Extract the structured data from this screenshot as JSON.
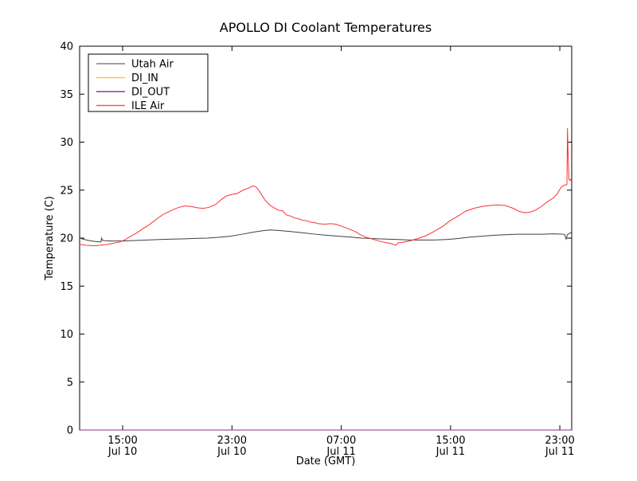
{
  "figure": {
    "background": "#ffffff",
    "axis_color": "#000000"
  },
  "chart_data": {
    "type": "line",
    "title": "APOLLO DI Coolant Temperatures",
    "xlabel": "Date (GMT)",
    "ylabel": "Temperature (C)",
    "x_unit": "hours since Jul 10 00:00 GMT",
    "xlim": [
      11.85,
      47.87
    ],
    "ylim": [
      0,
      40
    ],
    "grid": false,
    "legend_position": "upper left",
    "xticks": [
      {
        "value": 15,
        "time": "15:00",
        "date": "Jul 10"
      },
      {
        "value": 23,
        "time": "23:00",
        "date": "Jul 10"
      },
      {
        "value": 31,
        "time": "07:00",
        "date": "Jul 11"
      },
      {
        "value": 39,
        "time": "15:00",
        "date": "Jul 11"
      },
      {
        "value": 47,
        "time": "23:00",
        "date": "Jul 11"
      }
    ],
    "yticks": [
      0,
      5,
      10,
      15,
      20,
      25,
      30,
      35,
      40
    ],
    "series": [
      {
        "name": "Utah Air",
        "color": "#3f3f3f",
        "legend_color": "#808080",
        "points": [
          [
            11.85,
            20.0
          ],
          [
            12.1,
            19.9
          ],
          [
            12.5,
            19.75
          ],
          [
            13.0,
            19.65
          ],
          [
            13.35,
            19.6
          ],
          [
            13.42,
            19.62
          ],
          [
            13.45,
            20.0
          ],
          [
            13.52,
            19.78
          ],
          [
            13.7,
            19.73
          ],
          [
            14.2,
            19.7
          ],
          [
            15.0,
            19.7
          ],
          [
            15.9,
            19.75
          ],
          [
            16.8,
            19.8
          ],
          [
            17.7,
            19.85
          ],
          [
            18.6,
            19.9
          ],
          [
            19.4,
            19.92
          ],
          [
            20.3,
            19.97
          ],
          [
            21.2,
            20.0
          ],
          [
            22.0,
            20.08
          ],
          [
            22.9,
            20.2
          ],
          [
            23.8,
            20.42
          ],
          [
            24.7,
            20.65
          ],
          [
            25.3,
            20.78
          ],
          [
            25.8,
            20.85
          ],
          [
            26.4,
            20.8
          ],
          [
            27.3,
            20.68
          ],
          [
            28.2,
            20.55
          ],
          [
            29.0,
            20.42
          ],
          [
            29.9,
            20.3
          ],
          [
            30.8,
            20.2
          ],
          [
            31.7,
            20.1
          ],
          [
            32.5,
            20.0
          ],
          [
            33.4,
            19.95
          ],
          [
            34.3,
            19.9
          ],
          [
            35.2,
            19.85
          ],
          [
            36.0,
            19.8
          ],
          [
            36.9,
            19.8
          ],
          [
            37.8,
            19.8
          ],
          [
            38.7,
            19.85
          ],
          [
            39.5,
            19.95
          ],
          [
            40.4,
            20.1
          ],
          [
            41.3,
            20.2
          ],
          [
            42.2,
            20.3
          ],
          [
            43.0,
            20.35
          ],
          [
            43.9,
            20.4
          ],
          [
            44.8,
            20.4
          ],
          [
            45.7,
            20.4
          ],
          [
            46.5,
            20.45
          ],
          [
            47.1,
            20.42
          ],
          [
            47.35,
            20.38
          ],
          [
            47.46,
            19.9
          ],
          [
            47.55,
            20.35
          ],
          [
            47.76,
            20.55
          ],
          [
            47.87,
            20.6
          ]
        ]
      },
      {
        "name": "DI_IN",
        "color": "#ffa500",
        "legend_color": "#ffbf4d",
        "points": [
          [
            11.85,
            0
          ],
          [
            47.87,
            0
          ]
        ]
      },
      {
        "name": "DI_OUT",
        "color": "#8e2d8e",
        "legend_color": "#993399",
        "points": [
          [
            11.85,
            0
          ],
          [
            47.87,
            0
          ]
        ]
      },
      {
        "name": "ILE Air",
        "color": "#ff3030",
        "legend_color": "#ff5555",
        "points": [
          [
            11.85,
            19.35
          ],
          [
            12.3,
            19.25
          ],
          [
            13.0,
            19.2
          ],
          [
            13.9,
            19.35
          ],
          [
            14.8,
            19.6
          ],
          [
            15.2,
            19.85
          ],
          [
            15.6,
            20.2
          ],
          [
            16.1,
            20.6
          ],
          [
            16.5,
            21.0
          ],
          [
            17.0,
            21.45
          ],
          [
            17.4,
            21.9
          ],
          [
            18.0,
            22.5
          ],
          [
            18.6,
            22.9
          ],
          [
            19.1,
            23.2
          ],
          [
            19.55,
            23.35
          ],
          [
            20.0,
            23.3
          ],
          [
            20.5,
            23.15
          ],
          [
            20.9,
            23.1
          ],
          [
            21.3,
            23.2
          ],
          [
            21.8,
            23.5
          ],
          [
            22.2,
            24.0
          ],
          [
            22.6,
            24.4
          ],
          [
            23.0,
            24.55
          ],
          [
            23.4,
            24.65
          ],
          [
            23.8,
            25.0
          ],
          [
            24.2,
            25.2
          ],
          [
            24.56,
            25.45
          ],
          [
            24.8,
            25.3
          ],
          [
            25.0,
            24.9
          ],
          [
            25.4,
            24.0
          ],
          [
            25.8,
            23.4
          ],
          [
            26.1,
            23.15
          ],
          [
            26.4,
            22.9
          ],
          [
            26.7,
            22.85
          ],
          [
            27.0,
            22.4
          ],
          [
            27.3,
            22.3
          ],
          [
            27.6,
            22.1
          ],
          [
            27.9,
            22.0
          ],
          [
            28.2,
            21.85
          ],
          [
            28.5,
            21.8
          ],
          [
            28.8,
            21.65
          ],
          [
            29.1,
            21.6
          ],
          [
            29.3,
            21.5
          ],
          [
            29.8,
            21.45
          ],
          [
            30.2,
            21.5
          ],
          [
            30.6,
            21.45
          ],
          [
            31.1,
            21.2
          ],
          [
            31.55,
            20.95
          ],
          [
            32.0,
            20.7
          ],
          [
            32.4,
            20.35
          ],
          [
            32.8,
            20.1
          ],
          [
            33.4,
            19.85
          ],
          [
            34.0,
            19.6
          ],
          [
            34.6,
            19.45
          ],
          [
            35.0,
            19.25
          ],
          [
            35.15,
            19.5
          ],
          [
            35.45,
            19.55
          ],
          [
            36.0,
            19.7
          ],
          [
            36.6,
            19.95
          ],
          [
            37.2,
            20.25
          ],
          [
            37.8,
            20.7
          ],
          [
            38.4,
            21.2
          ],
          [
            38.95,
            21.8
          ],
          [
            39.55,
            22.3
          ],
          [
            40.1,
            22.8
          ],
          [
            40.7,
            23.1
          ],
          [
            41.3,
            23.3
          ],
          [
            41.9,
            23.4
          ],
          [
            42.45,
            23.45
          ],
          [
            43.0,
            23.4
          ],
          [
            43.6,
            23.1
          ],
          [
            44.0,
            22.8
          ],
          [
            44.4,
            22.65
          ],
          [
            44.8,
            22.7
          ],
          [
            45.2,
            22.9
          ],
          [
            45.65,
            23.3
          ],
          [
            46.1,
            23.8
          ],
          [
            46.55,
            24.2
          ],
          [
            46.8,
            24.6
          ],
          [
            47.1,
            25.3
          ],
          [
            47.3,
            25.5
          ],
          [
            47.45,
            25.55
          ],
          [
            47.52,
            25.6
          ],
          [
            47.56,
            31.45
          ],
          [
            47.62,
            28.0
          ],
          [
            47.67,
            26.1
          ],
          [
            47.76,
            26.0
          ],
          [
            47.87,
            26.3
          ]
        ]
      }
    ]
  }
}
